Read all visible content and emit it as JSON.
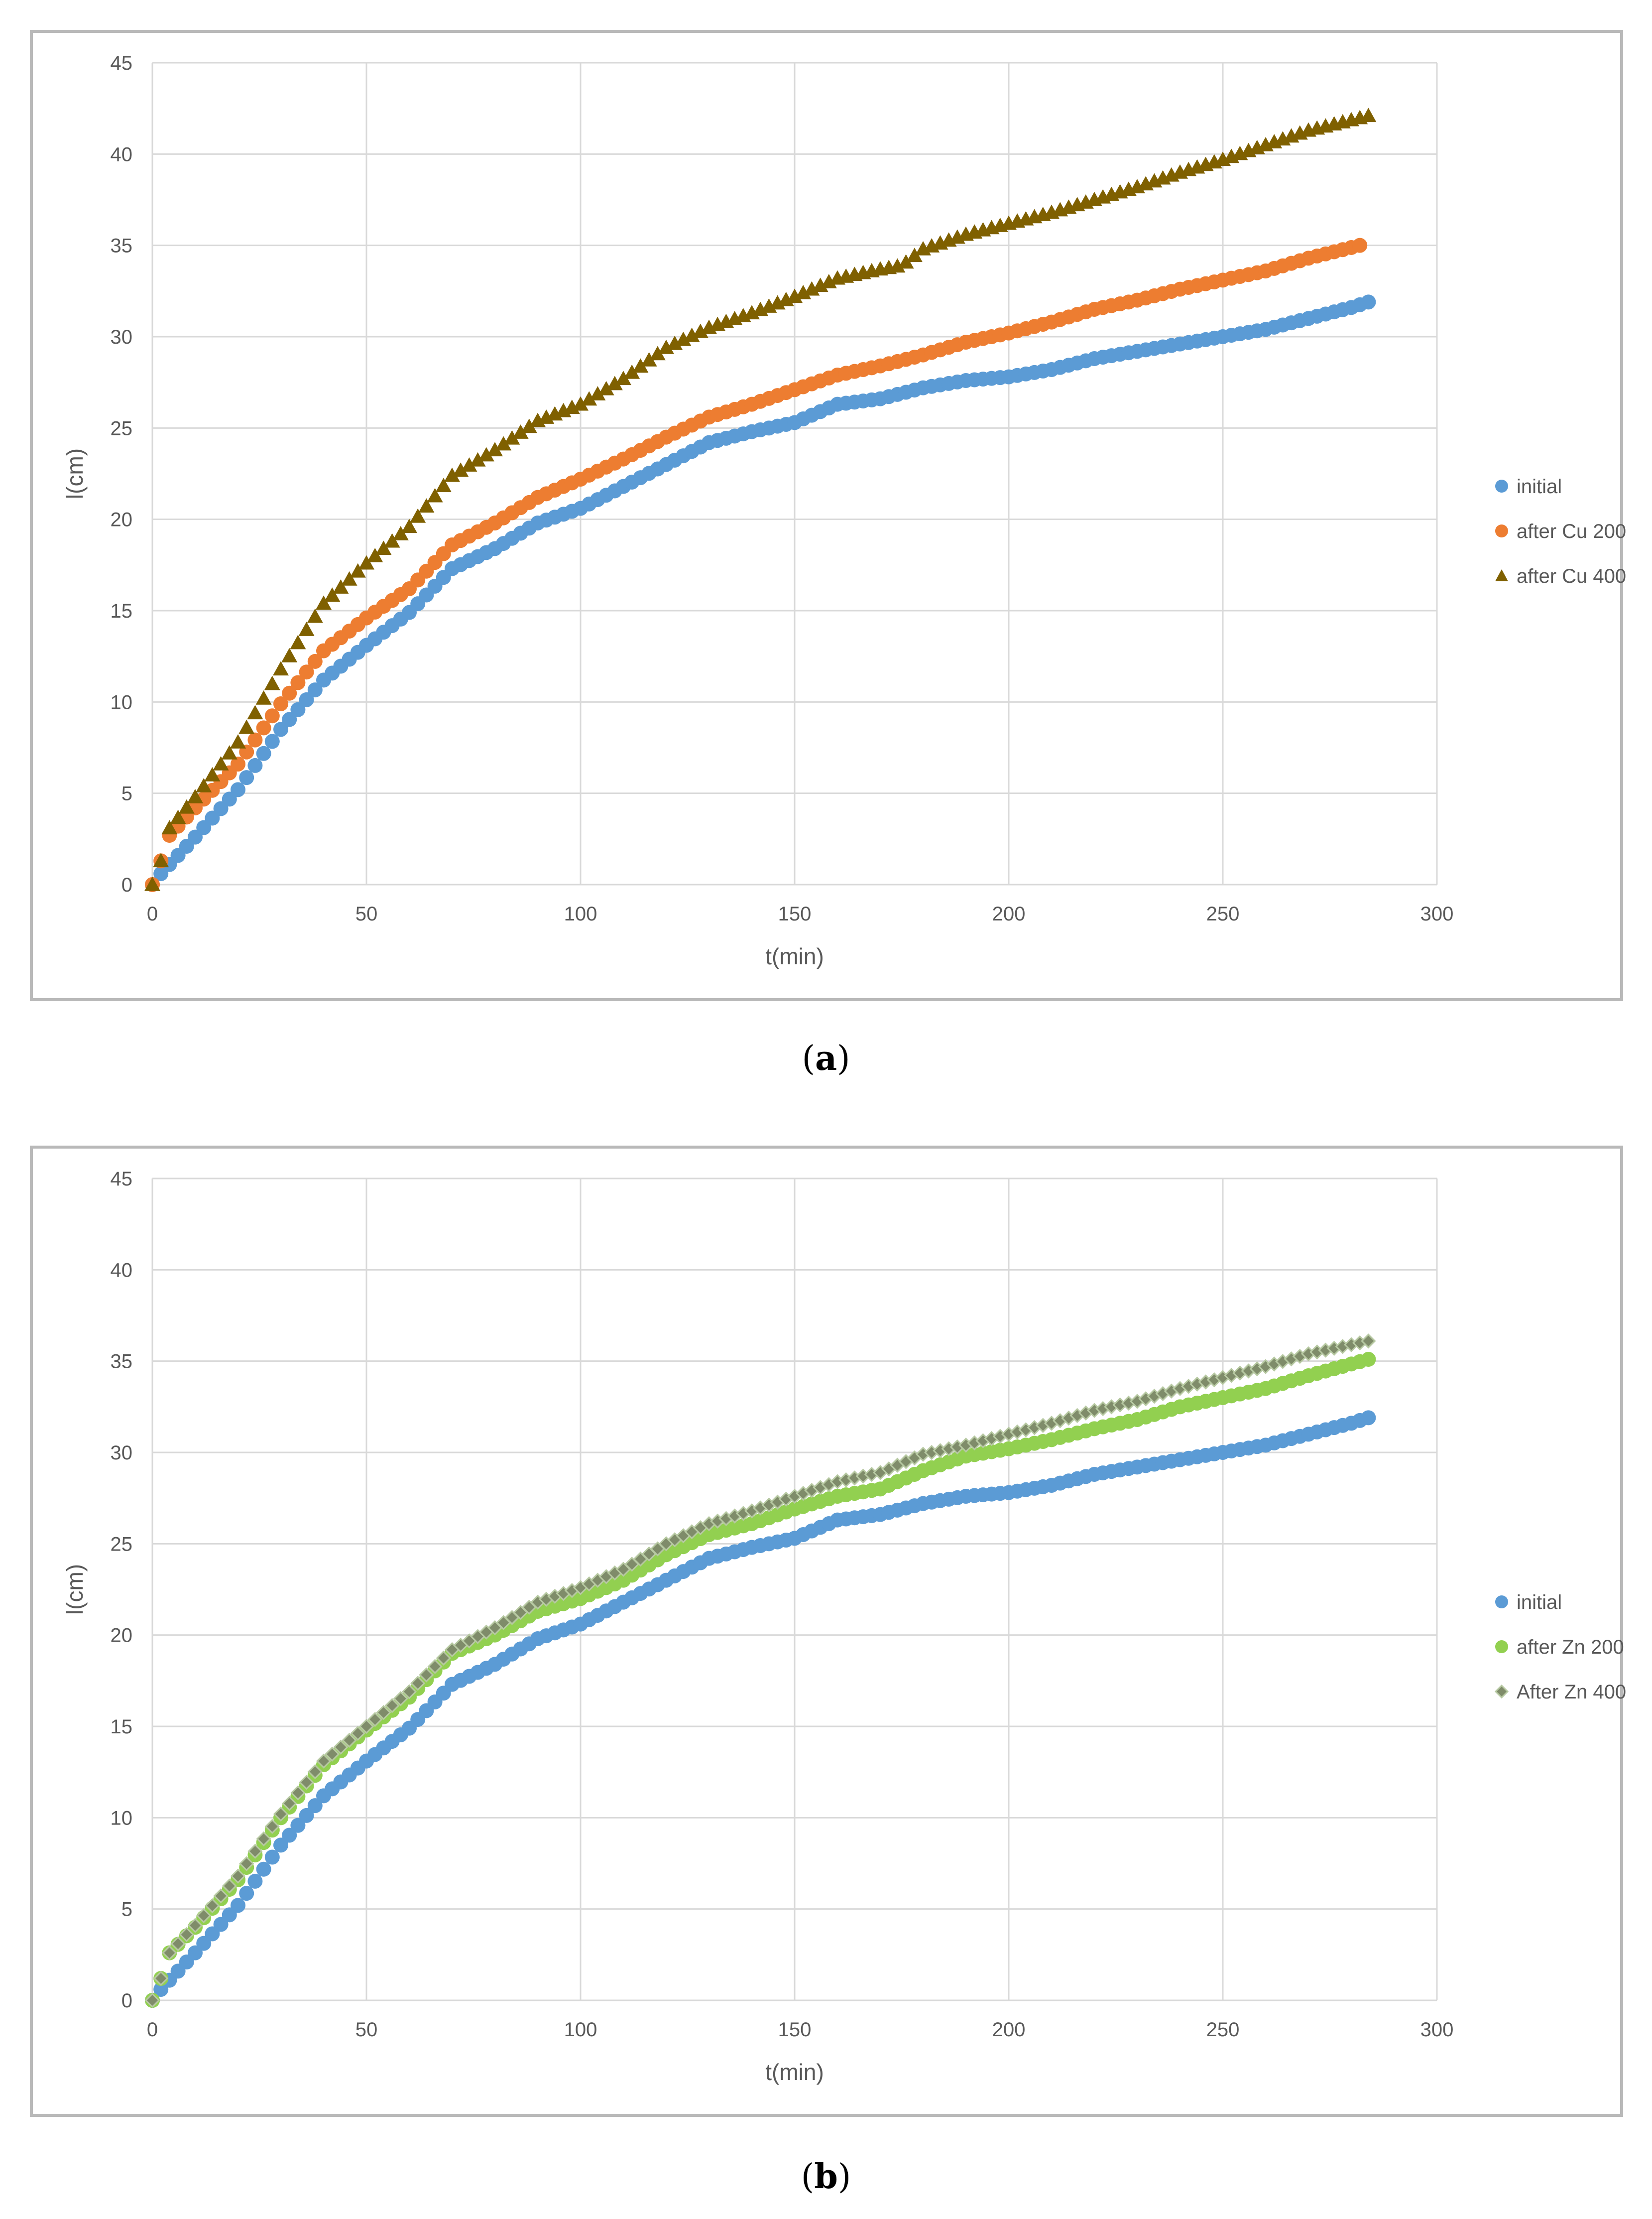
{
  "figure": {
    "caption_a": "a",
    "caption_b": "b"
  },
  "chart_data": [
    {
      "type": "scatter",
      "id": "a",
      "title": "",
      "xlabel": "t(min)",
      "ylabel": "l(cm)",
      "xlim": [
        0,
        300
      ],
      "ylim": [
        0,
        45
      ],
      "xticks": [
        0,
        50,
        100,
        150,
        200,
        250,
        300
      ],
      "yticks": [
        0,
        5,
        10,
        15,
        20,
        25,
        30,
        35,
        40,
        45
      ],
      "grid": true,
      "legend": "right",
      "series": [
        {
          "name": "initial",
          "marker": "circle",
          "color": "#5b9bd5",
          "x_step": 2,
          "anchors": [
            [
              0,
              0
            ],
            [
              2,
              0.6
            ],
            [
              10,
              2.6
            ],
            [
              20,
              5.2
            ],
            [
              30,
              8.5
            ],
            [
              40,
              11.2
            ],
            [
              50,
              13.1
            ],
            [
              60,
              14.9
            ],
            [
              70,
              17.3
            ],
            [
              80,
              18.4
            ],
            [
              90,
              19.8
            ],
            [
              100,
              20.6
            ],
            [
              110,
              21.8
            ],
            [
              120,
              23.0
            ],
            [
              130,
              24.2
            ],
            [
              140,
              24.8
            ],
            [
              150,
              25.3
            ],
            [
              160,
              26.3
            ],
            [
              170,
              26.6
            ],
            [
              180,
              27.2
            ],
            [
              190,
              27.6
            ],
            [
              200,
              27.8
            ],
            [
              210,
              28.2
            ],
            [
              220,
              28.8
            ],
            [
              230,
              29.2
            ],
            [
              240,
              29.6
            ],
            [
              250,
              30.0
            ],
            [
              260,
              30.4
            ],
            [
              270,
              31.0
            ],
            [
              280,
              31.6
            ],
            [
              284,
              31.9
            ]
          ]
        },
        {
          "name": "after Cu 200",
          "marker": "circle",
          "color": "#ed7d31",
          "x_step": 2,
          "anchors": [
            [
              0,
              0
            ],
            [
              2,
              1.3
            ],
            [
              4,
              2.7
            ],
            [
              10,
              4.2
            ],
            [
              20,
              6.6
            ],
            [
              30,
              9.9
            ],
            [
              40,
              12.8
            ],
            [
              50,
              14.6
            ],
            [
              60,
              16.2
            ],
            [
              70,
              18.6
            ],
            [
              80,
              19.8
            ],
            [
              90,
              21.2
            ],
            [
              100,
              22.2
            ],
            [
              110,
              23.3
            ],
            [
              120,
              24.5
            ],
            [
              130,
              25.6
            ],
            [
              140,
              26.3
            ],
            [
              150,
              27.1
            ],
            [
              160,
              27.9
            ],
            [
              170,
              28.4
            ],
            [
              180,
              29.0
            ],
            [
              190,
              29.7
            ],
            [
              200,
              30.2
            ],
            [
              210,
              30.8
            ],
            [
              220,
              31.5
            ],
            [
              230,
              32.0
            ],
            [
              240,
              32.6
            ],
            [
              250,
              33.1
            ],
            [
              260,
              33.6
            ],
            [
              270,
              34.3
            ],
            [
              282,
              35.0
            ]
          ]
        },
        {
          "name": "after Cu 400",
          "marker": "triangle",
          "color": "#7f6000",
          "x_step": 2,
          "anchors": [
            [
              0,
              0
            ],
            [
              2,
              1.3
            ],
            [
              4,
              3.1
            ],
            [
              10,
              4.8
            ],
            [
              20,
              7.8
            ],
            [
              30,
              11.8
            ],
            [
              40,
              15.4
            ],
            [
              50,
              17.6
            ],
            [
              60,
              19.6
            ],
            [
              70,
              22.4
            ],
            [
              80,
              23.8
            ],
            [
              90,
              25.4
            ],
            [
              100,
              26.3
            ],
            [
              110,
              27.7
            ],
            [
              120,
              29.4
            ],
            [
              130,
              30.5
            ],
            [
              140,
              31.3
            ],
            [
              150,
              32.2
            ],
            [
              160,
              33.2
            ],
            [
              170,
              33.7
            ],
            [
              175,
              33.9
            ],
            [
              180,
              34.8
            ],
            [
              190,
              35.6
            ],
            [
              200,
              36.2
            ],
            [
              210,
              36.8
            ],
            [
              220,
              37.5
            ],
            [
              230,
              38.2
            ],
            [
              240,
              39.0
            ],
            [
              250,
              39.7
            ],
            [
              260,
              40.5
            ],
            [
              270,
              41.3
            ],
            [
              284,
              42.1
            ]
          ]
        }
      ]
    },
    {
      "type": "scatter",
      "id": "b",
      "title": "",
      "xlabel": "t(min)",
      "ylabel": "l(cm)",
      "xlim": [
        0,
        300
      ],
      "ylim": [
        0,
        45
      ],
      "xticks": [
        0,
        50,
        100,
        150,
        200,
        250,
        300
      ],
      "yticks": [
        0,
        5,
        10,
        15,
        20,
        25,
        30,
        35,
        40,
        45
      ],
      "grid": true,
      "legend": "right",
      "series": [
        {
          "name": "initial",
          "marker": "circle",
          "color": "#5b9bd5",
          "x_step": 2,
          "anchors": [
            [
              0,
              0
            ],
            [
              2,
              0.6
            ],
            [
              10,
              2.6
            ],
            [
              20,
              5.2
            ],
            [
              30,
              8.5
            ],
            [
              40,
              11.2
            ],
            [
              50,
              13.1
            ],
            [
              60,
              14.9
            ],
            [
              70,
              17.3
            ],
            [
              80,
              18.4
            ],
            [
              90,
              19.8
            ],
            [
              100,
              20.6
            ],
            [
              110,
              21.8
            ],
            [
              120,
              23.0
            ],
            [
              130,
              24.2
            ],
            [
              140,
              24.8
            ],
            [
              150,
              25.3
            ],
            [
              160,
              26.3
            ],
            [
              170,
              26.6
            ],
            [
              180,
              27.2
            ],
            [
              190,
              27.6
            ],
            [
              200,
              27.8
            ],
            [
              210,
              28.2
            ],
            [
              220,
              28.8
            ],
            [
              230,
              29.2
            ],
            [
              240,
              29.6
            ],
            [
              250,
              30.0
            ],
            [
              260,
              30.4
            ],
            [
              270,
              31.0
            ],
            [
              280,
              31.6
            ],
            [
              284,
              31.9
            ]
          ]
        },
        {
          "name": "after Zn 200",
          "marker": "circle",
          "color": "#92d050",
          "x_step": 2,
          "anchors": [
            [
              0,
              0
            ],
            [
              2,
              1.2
            ],
            [
              4,
              2.6
            ],
            [
              10,
              4.0
            ],
            [
              20,
              6.6
            ],
            [
              30,
              10.0
            ],
            [
              40,
              12.9
            ],
            [
              50,
              14.8
            ],
            [
              60,
              16.6
            ],
            [
              70,
              19.0
            ],
            [
              80,
              20.0
            ],
            [
              90,
              21.3
            ],
            [
              100,
              22.0
            ],
            [
              110,
              23.0
            ],
            [
              120,
              24.4
            ],
            [
              130,
              25.5
            ],
            [
              140,
              26.1
            ],
            [
              150,
              26.9
            ],
            [
              160,
              27.6
            ],
            [
              170,
              28.0
            ],
            [
              180,
              29.0
            ],
            [
              190,
              29.8
            ],
            [
              200,
              30.2
            ],
            [
              210,
              30.7
            ],
            [
              220,
              31.3
            ],
            [
              230,
              31.8
            ],
            [
              240,
              32.5
            ],
            [
              250,
              33.0
            ],
            [
              260,
              33.5
            ],
            [
              270,
              34.2
            ],
            [
              284,
              35.1
            ]
          ]
        },
        {
          "name": "After Zn 400",
          "marker": "diamond",
          "color": "#7f8c6a",
          "x_step": 2,
          "anchors": [
            [
              0,
              0
            ],
            [
              2,
              1.2
            ],
            [
              4,
              2.6
            ],
            [
              10,
              4.1
            ],
            [
              20,
              6.8
            ],
            [
              30,
              10.2
            ],
            [
              40,
              13.1
            ],
            [
              50,
              15.0
            ],
            [
              60,
              16.9
            ],
            [
              70,
              19.2
            ],
            [
              80,
              20.4
            ],
            [
              90,
              21.8
            ],
            [
              100,
              22.6
            ],
            [
              110,
              23.6
            ],
            [
              120,
              25.0
            ],
            [
              130,
              26.1
            ],
            [
              140,
              26.8
            ],
            [
              150,
              27.6
            ],
            [
              160,
              28.4
            ],
            [
              170,
              28.9
            ],
            [
              180,
              29.9
            ],
            [
              190,
              30.4
            ],
            [
              200,
              31.0
            ],
            [
              210,
              31.6
            ],
            [
              220,
              32.3
            ],
            [
              230,
              32.8
            ],
            [
              240,
              33.5
            ],
            [
              250,
              34.1
            ],
            [
              260,
              34.7
            ],
            [
              270,
              35.4
            ],
            [
              284,
              36.1
            ]
          ]
        }
      ]
    }
  ]
}
